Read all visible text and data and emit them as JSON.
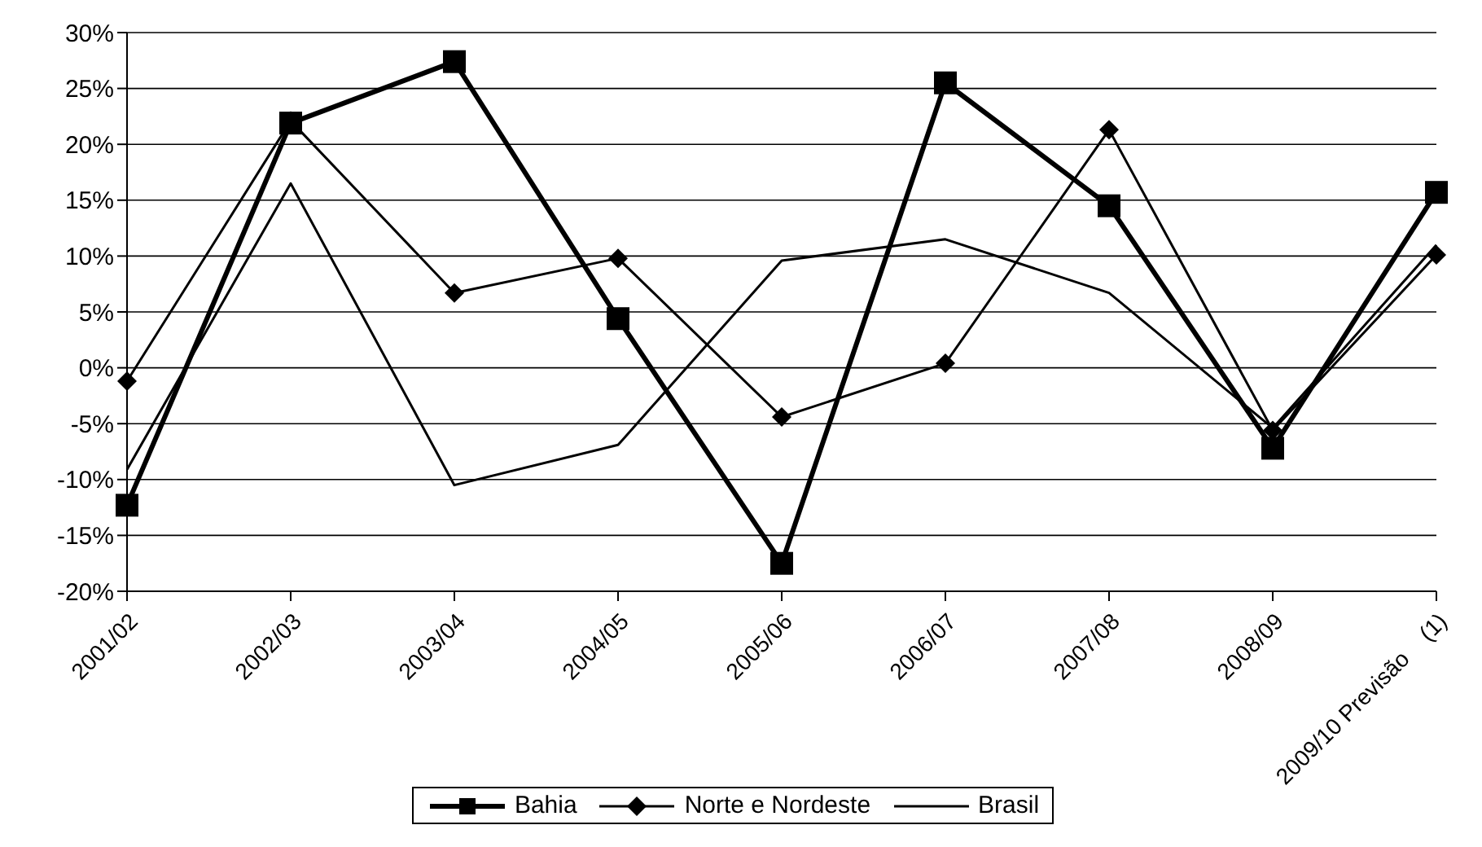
{
  "chart_data": {
    "type": "line",
    "categories": [
      "2001/02",
      "2002/03",
      "2003/04",
      "2004/05",
      "2005/06",
      "2006/07",
      "2007/08",
      "2008/09",
      "2009/10 Previsão    (1)"
    ],
    "series": [
      {
        "name": "Bahia",
        "color": "#000000",
        "marker": "square",
        "values": [
          -12.3,
          21.9,
          27.4,
          4.4,
          -17.5,
          25.5,
          14.5,
          -7.2,
          15.7
        ]
      },
      {
        "name": "Norte e Nordeste",
        "color": "#000000",
        "marker": "diamond",
        "values": [
          -1.2,
          22.1,
          6.7,
          9.8,
          -4.4,
          0.4,
          21.3,
          -5.6,
          10.1
        ]
      },
      {
        "name": "Brasil",
        "color": "#000000",
        "marker": "none",
        "values": [
          -9.1,
          16.5,
          -10.5,
          -6.9,
          9.6,
          11.5,
          6.7,
          -5.4,
          11.0
        ]
      }
    ],
    "ylim": [
      -20,
      30
    ],
    "yticks": [
      {
        "value": -20,
        "label": "-20%"
      },
      {
        "value": -15,
        "label": "-15%"
      },
      {
        "value": -10,
        "label": "-10%"
      },
      {
        "value": -5,
        "label": "-5%"
      },
      {
        "value": 0,
        "label": "0%"
      },
      {
        "value": 5,
        "label": "5%"
      },
      {
        "value": 10,
        "label": "10%"
      },
      {
        "value": 15,
        "label": "15%"
      },
      {
        "value": 20,
        "label": "20%"
      },
      {
        "value": 25,
        "label": "25%"
      },
      {
        "value": 30,
        "label": "30%"
      }
    ],
    "grid": "y",
    "legend": "bottom",
    "line_style": "solid"
  }
}
